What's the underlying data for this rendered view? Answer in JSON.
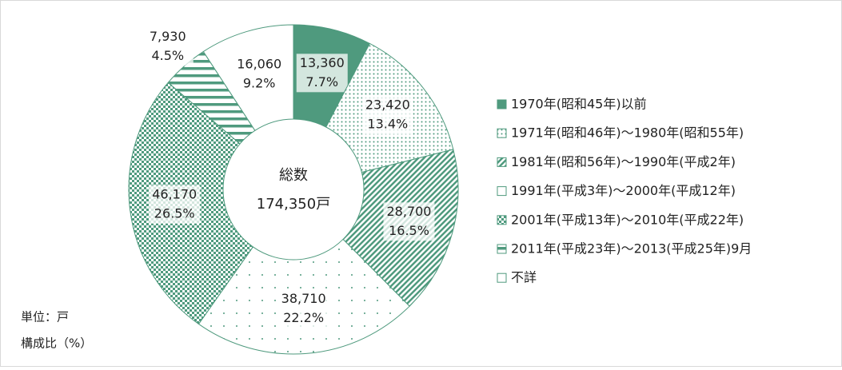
{
  "chart_data": {
    "type": "donut",
    "categories": [
      "1970年(昭和45年)以前",
      "1971年(昭和46年)～1980年(昭和55年)",
      "1981年(昭和56年)～1990年(平成2年)",
      "1991年(平成3年)～2000年(平成12年)",
      "2001年(平成13年)～2010年(平成22年)",
      "2011年(平成23年)～2013(平成25年)9月",
      "不詳"
    ],
    "values": [
      13360,
      23420,
      28700,
      38710,
      46170,
      7930,
      16060
    ],
    "value_labels": [
      "13,360",
      "23,420",
      "28,700",
      "38,710",
      "46,170",
      "7,930",
      "16,060"
    ],
    "shares": {
      "values": [
        7.7,
        13.4,
        16.5,
        22.2,
        26.5,
        4.5,
        9.2
      ],
      "value_labels": [
        "7.7%",
        "13.4%",
        "16.5%",
        "22.2%",
        "26.5%",
        "4.5%",
        "9.2%"
      ]
    },
    "color": "#4f9a7e",
    "patterns": [
      "solid",
      "dots",
      "diagonal",
      "sparse-dots",
      "checker",
      "horizontal",
      "none"
    ],
    "center_label": "総数",
    "total_label": "174,350戸",
    "unit_note": "単位：戸",
    "share_note": "構成比（%）"
  }
}
